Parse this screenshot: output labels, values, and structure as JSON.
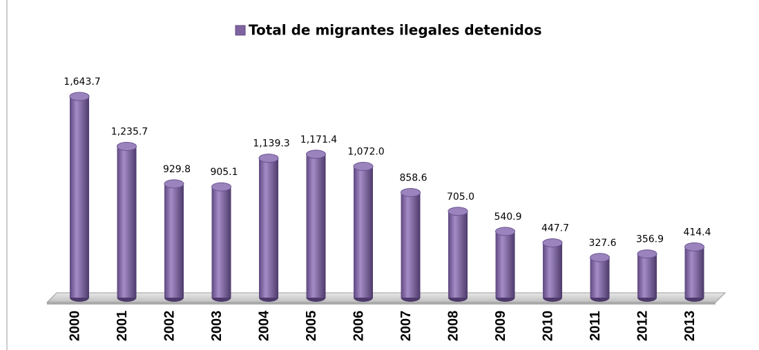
{
  "chart_data": {
    "type": "bar",
    "series": [
      {
        "name": "Total de migrantes ilegales detenidos",
        "color": "#8064a2",
        "values": [
          1643.7,
          1235.7,
          929.8,
          905.1,
          1139.3,
          1171.4,
          1072.0,
          858.6,
          705.0,
          540.9,
          447.7,
          327.6,
          356.9,
          414.4
        ],
        "value_labels": [
          "1,643.7",
          "1,235.7",
          "929.8",
          "905.1",
          "1,139.3",
          "1,171.4",
          "1,072.0",
          "858.6",
          "705.0",
          "540.9",
          "447.7",
          "327.6",
          "356.9",
          "414.4"
        ]
      }
    ],
    "categories": [
      "2000",
      "2001",
      "2002",
      "2003",
      "2004",
      "2005",
      "2006",
      "2007",
      "2008",
      "2009",
      "2010",
      "2011",
      "2012",
      "2013"
    ],
    "legend": "top"
  }
}
